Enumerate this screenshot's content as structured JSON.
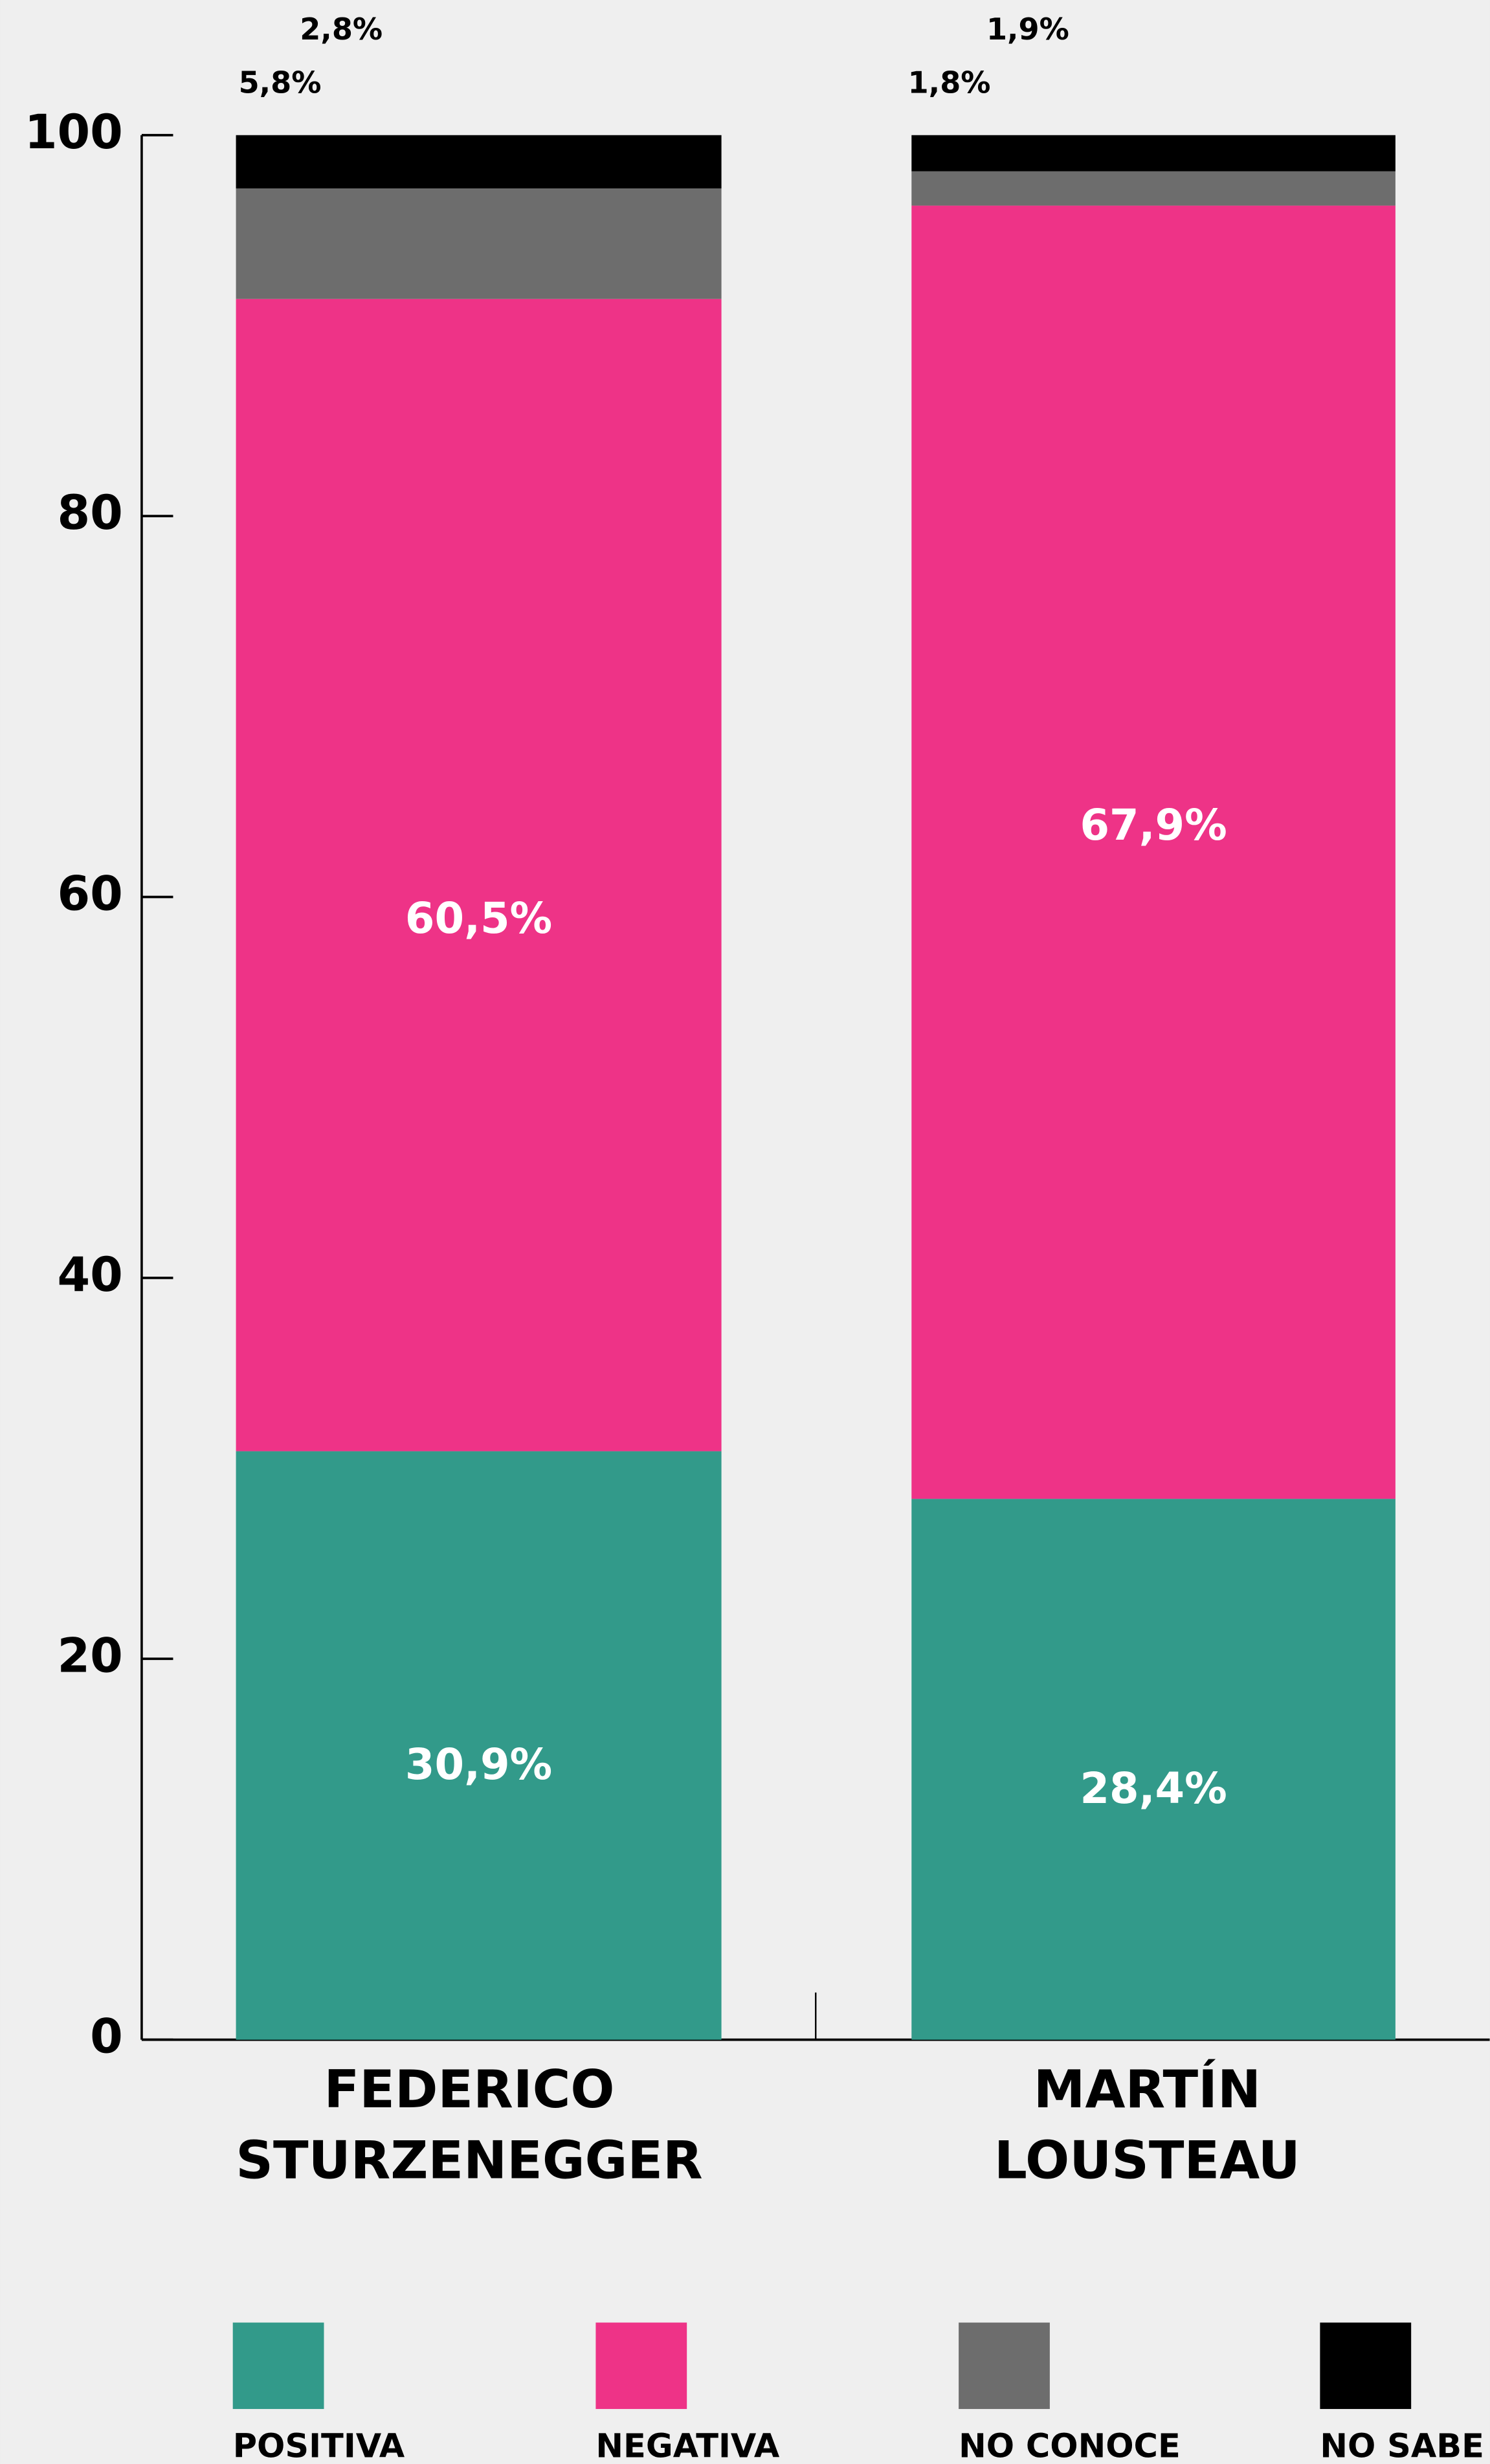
{
  "chart_data": {
    "type": "stacked_bar",
    "categories": [
      "FEDERICO STURZENEGGER",
      "MARTÍN LOUSTEAU"
    ],
    "series": [
      {
        "name": "POSITIVA",
        "color": "#329a8a",
        "values": [
          30.9,
          28.4
        ],
        "value_labels": [
          "30,9%",
          "28,4%"
        ]
      },
      {
        "name": "NEGATIVA",
        "color": "#ee3387",
        "values": [
          60.5,
          67.9
        ],
        "value_labels": [
          "60,5%",
          "67,9%"
        ]
      },
      {
        "name": "NO CONOCE",
        "color": "#6d6d6d",
        "values": [
          5.8,
          1.8
        ],
        "value_labels": [
          "5,8%",
          "1,8%"
        ]
      },
      {
        "name": "NO SABE",
        "color": "#000000",
        "values": [
          2.8,
          1.9
        ],
        "value_labels": [
          "2,8%",
          "1,9%"
        ]
      }
    ],
    "ylim": [
      0,
      100
    ],
    "yticks": [
      0,
      20,
      40,
      60,
      80,
      100
    ]
  }
}
